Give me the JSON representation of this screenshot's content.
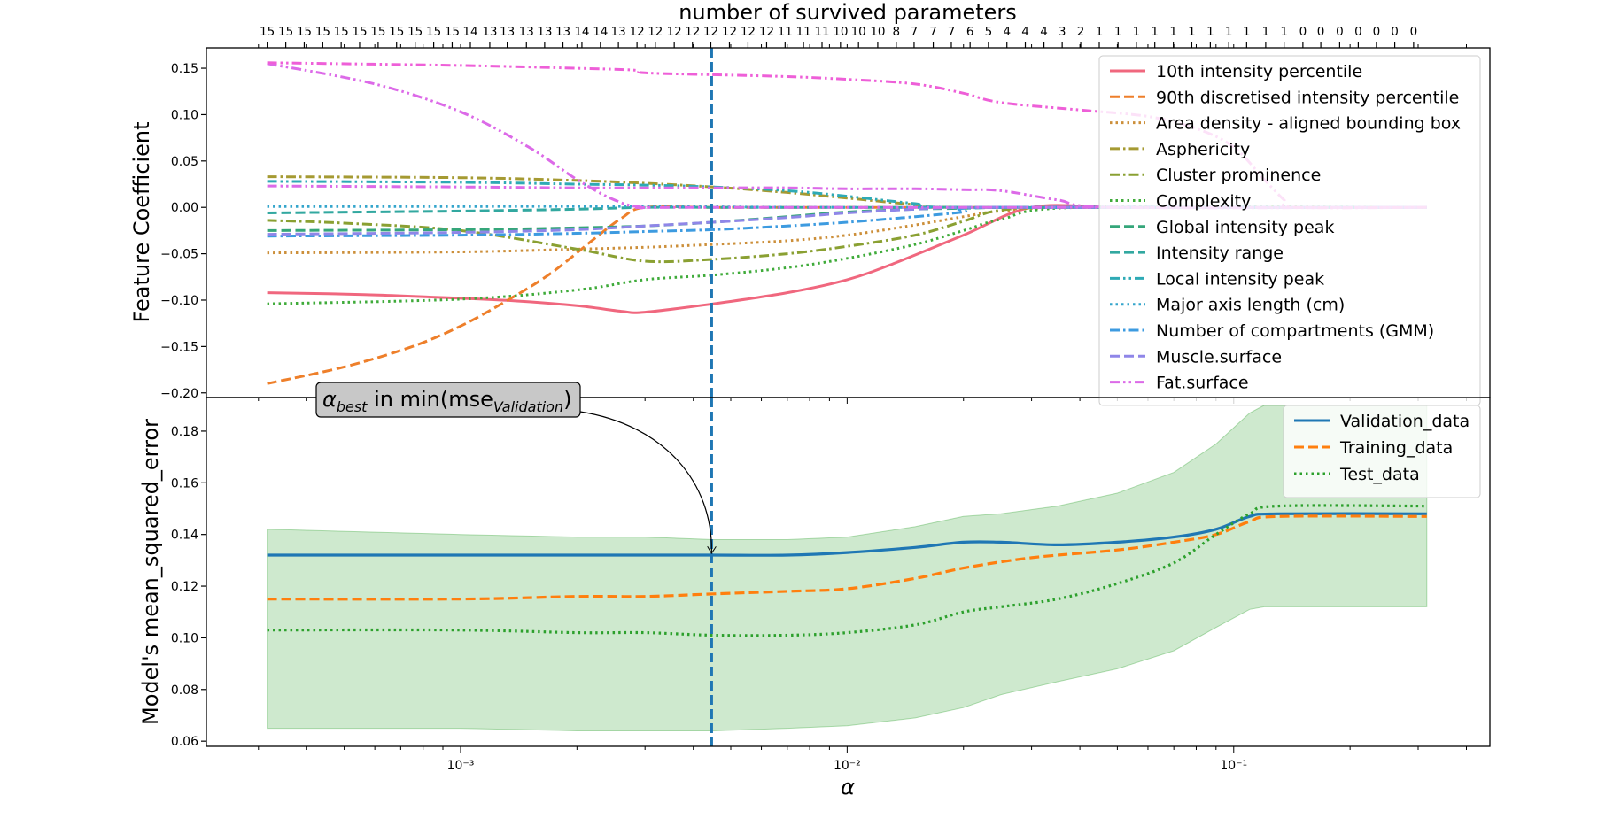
{
  "chart_data": [
    {
      "type": "line",
      "title": "",
      "top_axis_label": "number of survived parameters",
      "ylabel": "Feature Coefficient",
      "xlabel": "",
      "xscale": "log",
      "xlim": [
        0.00022,
        0.46
      ],
      "ylim": [
        -0.205,
        0.172
      ],
      "yticks": [
        0.15,
        0.1,
        0.05,
        0.0,
        -0.05,
        -0.1,
        -0.15,
        -0.2
      ],
      "ytick_labels": [
        "0.15",
        "0.10",
        "0.05",
        "0.00",
        "−0.05",
        "−0.10",
        "−0.15",
        "−0.20"
      ],
      "grid": false,
      "legend_position": "top-right",
      "top_ticks": {
        "x": [
          0.000316,
          0.000353,
          0.000394,
          0.00044,
          0.000491,
          0.000548,
          0.000612,
          0.000683,
          0.000763,
          0.000852,
          0.000951,
          0.00106,
          0.00119,
          0.00132,
          0.00148,
          0.00165,
          0.00184,
          0.00206,
          0.0023,
          0.00256,
          0.00286,
          0.00319,
          0.00357,
          0.00398,
          0.00444,
          0.00496,
          0.00554,
          0.00619,
          0.00691,
          0.00771,
          0.00861,
          0.00961,
          0.0107,
          0.012,
          0.0134,
          0.0149,
          0.0167,
          0.0186,
          0.0208,
          0.0232,
          0.0259,
          0.0289,
          0.0323,
          0.036,
          0.0402,
          0.0449,
          0.0502,
          0.056,
          0.0625,
          0.0698,
          0.0779,
          0.087,
          0.0971,
          0.108,
          0.121,
          0.135,
          0.151,
          0.168,
          0.188,
          0.21,
          0.234,
          0.261,
          0.292
        ],
        "labels": [
          "15",
          "15",
          "15",
          "15",
          "15",
          "15",
          "15",
          "15",
          "15",
          "15",
          "15",
          "14",
          "13",
          "13",
          "13",
          "13",
          "13",
          "14",
          "14",
          "13",
          "12",
          "12",
          "12",
          "12",
          "12",
          "12",
          "12",
          "12",
          "11",
          "11",
          "11",
          "10",
          "10",
          "10",
          "8",
          "7",
          "7",
          "7",
          "6",
          "5",
          "4",
          "4",
          "4",
          "3",
          "2",
          "1",
          "1",
          "1",
          "1",
          "1",
          "1",
          "1",
          "1",
          "1",
          "1",
          "1",
          "0",
          "0",
          "0",
          "0",
          "0",
          "0",
          "0"
        ]
      },
      "series": [
        {
          "name": "10th intensity percentile",
          "color": "#f0677e",
          "dash": "solid",
          "x": [
            0.000316,
            0.000562,
            0.001,
            0.0014,
            0.002,
            0.0026,
            0.003,
            0.0045,
            0.007,
            0.01,
            0.0133,
            0.02,
            0.03,
            0.05,
            0.1,
            0.316
          ],
          "y": [
            -0.092,
            -0.094,
            -0.098,
            -0.101,
            -0.106,
            -0.112,
            -0.113,
            -0.104,
            -0.092,
            -0.078,
            -0.06,
            -0.03,
            0.0,
            0.0,
            0.0,
            0.0
          ]
        },
        {
          "name": "90th discretised intensity percentile",
          "color": "#ee7f2a",
          "dash": "dashed",
          "x": [
            0.000316,
            0.0005,
            0.00075,
            0.001,
            0.0013,
            0.0017,
            0.0022,
            0.0026,
            0.003,
            0.0045,
            0.01,
            0.1,
            0.316
          ],
          "y": [
            -0.19,
            -0.172,
            -0.15,
            -0.128,
            -0.102,
            -0.072,
            -0.035,
            -0.012,
            0.0,
            0.0,
            0.0,
            0.0,
            0.0
          ]
        },
        {
          "name": "Area density - aligned bounding box",
          "color": "#cc8f3a",
          "dash": "dotted",
          "x": [
            0.000316,
            0.001,
            0.002,
            0.003,
            0.0045,
            0.007,
            0.01,
            0.015,
            0.02,
            0.025,
            0.04,
            0.316
          ],
          "y": [
            -0.049,
            -0.048,
            -0.045,
            -0.043,
            -0.04,
            -0.036,
            -0.03,
            -0.019,
            -0.01,
            -0.004,
            0.0,
            0.0
          ]
        },
        {
          "name": "Asphericity",
          "color": "#a59a32",
          "dash": "dashdot",
          "x": [
            0.000316,
            0.001,
            0.002,
            0.003,
            0.0045,
            0.007,
            0.01,
            0.015,
            0.02,
            0.316
          ],
          "y": [
            0.033,
            0.032,
            0.029,
            0.026,
            0.022,
            0.016,
            0.01,
            0.003,
            0.0,
            0.0
          ]
        },
        {
          "name": "Cluster prominence",
          "color": "#8aa032",
          "dash": "dashdot",
          "x": [
            0.000316,
            0.0005,
            0.001,
            0.002,
            0.003,
            0.0045,
            0.007,
            0.01,
            0.015,
            0.02,
            0.025,
            0.04,
            0.316
          ],
          "y": [
            -0.014,
            -0.017,
            -0.025,
            -0.045,
            -0.058,
            -0.056,
            -0.05,
            -0.042,
            -0.03,
            -0.015,
            -0.003,
            0.0,
            0.0
          ]
        },
        {
          "name": "Complexity",
          "color": "#3fab3a",
          "dash": "dotted",
          "x": [
            0.000316,
            0.001,
            0.002,
            0.003,
            0.0045,
            0.007,
            0.01,
            0.015,
            0.02,
            0.025,
            0.04,
            0.316
          ],
          "y": [
            -0.104,
            -0.099,
            -0.089,
            -0.078,
            -0.073,
            -0.065,
            -0.055,
            -0.04,
            -0.025,
            -0.013,
            0.0,
            0.0
          ]
        },
        {
          "name": "Global intensity peak",
          "color": "#35a67a",
          "dash": "dashed",
          "x": [
            0.000316,
            0.001,
            0.002,
            0.003,
            0.0045,
            0.007,
            0.01,
            0.015,
            0.02,
            0.025,
            0.035,
            0.316
          ],
          "y": [
            -0.025,
            -0.024,
            -0.022,
            -0.02,
            -0.016,
            -0.01,
            -0.005,
            -0.002,
            -0.001,
            0.0,
            0.0,
            0.0
          ]
        },
        {
          "name": "Intensity range",
          "color": "#32a8a0",
          "dash": "dashed",
          "x": [
            0.000316,
            0.001,
            0.002,
            0.003,
            0.0045,
            0.007,
            0.01,
            0.316
          ],
          "y": [
            -0.006,
            -0.004,
            -0.002,
            0.0,
            0.0,
            0.0,
            0.0,
            0.0
          ]
        },
        {
          "name": "Local intensity peak",
          "color": "#2eaab5",
          "dash": "dashdotdot",
          "x": [
            0.000316,
            0.001,
            0.002,
            0.003,
            0.0045,
            0.007,
            0.01,
            0.015,
            0.02,
            0.316
          ],
          "y": [
            0.028,
            0.027,
            0.025,
            0.024,
            0.022,
            0.018,
            0.012,
            0.004,
            0.0,
            0.0
          ]
        },
        {
          "name": "Major axis length (cm)",
          "color": "#34a5cc",
          "dash": "dotted",
          "x": [
            0.000316,
            0.001,
            0.003,
            0.01,
            0.316
          ],
          "y": [
            0.001,
            0.001,
            0.001,
            0.0,
            0.0
          ]
        },
        {
          "name": "Number of compartments (GMM)",
          "color": "#3d9be0",
          "dash": "dashdot",
          "x": [
            0.000316,
            0.001,
            0.002,
            0.003,
            0.0045,
            0.007,
            0.01,
            0.015,
            0.02,
            0.025,
            0.316
          ],
          "y": [
            -0.031,
            -0.03,
            -0.028,
            -0.026,
            -0.024,
            -0.02,
            -0.016,
            -0.01,
            -0.005,
            0.0,
            0.0
          ]
        },
        {
          "name": "Muscle.surface",
          "color": "#8f86e8",
          "dash": "dashed",
          "x": [
            0.000316,
            0.001,
            0.002,
            0.003,
            0.0045,
            0.007,
            0.01,
            0.015,
            0.02,
            0.03,
            0.316
          ],
          "y": [
            -0.029,
            -0.027,
            -0.024,
            -0.02,
            -0.016,
            -0.011,
            -0.006,
            -0.002,
            0.0,
            0.0,
            0.0
          ]
        },
        {
          "name": "Fat.surface",
          "color": "#dc6ae8",
          "dash": "dashdotdot",
          "x": [
            0.000316,
            0.001,
            0.002,
            0.003,
            0.0045,
            0.007,
            0.01,
            0.015,
            0.02,
            0.025,
            0.035,
            0.05,
            0.316
          ],
          "y": [
            0.023,
            0.022,
            0.021,
            0.021,
            0.021,
            0.021,
            0.02,
            0.02,
            0.019,
            0.018,
            0.008,
            0.0,
            0.0
          ]
        },
        {
          "name": "",
          "color": "#dc6ae8",
          "dash": "dashdotdot",
          "x": [
            0.000316,
            0.0006,
            0.001,
            0.0015,
            0.002,
            0.0025,
            0.003,
            0.0045,
            0.316
          ],
          "y": [
            0.155,
            0.133,
            0.103,
            0.065,
            0.03,
            0.008,
            0.0,
            0.0,
            0.0
          ]
        },
        {
          "name": "",
          "color": "#ee5fd8",
          "dash": "dashdotdot",
          "x": [
            0.000316,
            0.001,
            0.002,
            0.0028,
            0.003,
            0.0045,
            0.007,
            0.01,
            0.015,
            0.02,
            0.025,
            0.04,
            0.06,
            0.08,
            0.1,
            0.12,
            0.135,
            0.145,
            0.316
          ],
          "y": [
            0.156,
            0.153,
            0.15,
            0.148,
            0.145,
            0.143,
            0.141,
            0.138,
            0.133,
            0.123,
            0.113,
            0.105,
            0.098,
            0.085,
            0.065,
            0.03,
            0.008,
            0.0,
            0.0
          ]
        }
      ],
      "legend": {
        "entries": [
          {
            "label": "10th intensity percentile",
            "color": "#f0677e",
            "dash": "solid"
          },
          {
            "label": "90th discretised intensity percentile",
            "color": "#ee7f2a",
            "dash": "dashed"
          },
          {
            "label": "Area density - aligned bounding box",
            "color": "#cc8f3a",
            "dash": "dotted"
          },
          {
            "label": "Asphericity",
            "color": "#a59a32",
            "dash": "dashdot"
          },
          {
            "label": "Cluster prominence",
            "color": "#8aa032",
            "dash": "dashdot"
          },
          {
            "label": "Complexity",
            "color": "#3fab3a",
            "dash": "dotted"
          },
          {
            "label": "Global intensity peak",
            "color": "#35a67a",
            "dash": "dashed"
          },
          {
            "label": "Intensity range",
            "color": "#32a8a0",
            "dash": "dashed"
          },
          {
            "label": "Local intensity peak",
            "color": "#2eaab5",
            "dash": "dashdotdot"
          },
          {
            "label": "Major axis length (cm)",
            "color": "#34a5cc",
            "dash": "dotted"
          },
          {
            "label": "Number of compartments (GMM)",
            "color": "#3d9be0",
            "dash": "dashdot"
          },
          {
            "label": "Muscle.surface",
            "color": "#8f86e8",
            "dash": "dashed"
          },
          {
            "label": "Fat.surface",
            "color": "#dc6ae8",
            "dash": "dashdotdot"
          }
        ]
      },
      "vline": {
        "x": 0.00446,
        "color": "#1f77b4",
        "dash": "dashed"
      }
    },
    {
      "type": "line",
      "title": "",
      "ylabel": "Model's mean_squared_error",
      "xlabel": "α",
      "xscale": "log",
      "xlim": [
        0.00022,
        0.46
      ],
      "ylim": [
        0.058,
        0.193
      ],
      "yticks": [
        0.06,
        0.08,
        0.1,
        0.12,
        0.14,
        0.16,
        0.18
      ],
      "ytick_labels": [
        "0.06",
        "0.08",
        "0.10",
        "0.12",
        "0.14",
        "0.16",
        "0.18"
      ],
      "xticks": [
        0.001,
        0.01,
        0.1
      ],
      "xtick_labels": [
        "10⁻³",
        "10⁻²",
        "10⁻¹"
      ],
      "grid": false,
      "legend_position": "top-right",
      "series": [
        {
          "name": "Validation_data",
          "color": "#1f77b4",
          "dash": "solid",
          "x": [
            0.000316,
            0.001,
            0.002,
            0.003,
            0.0045,
            0.007,
            0.01,
            0.015,
            0.02,
            0.025,
            0.035,
            0.05,
            0.07,
            0.09,
            0.11,
            0.13,
            0.316
          ],
          "y": [
            0.132,
            0.132,
            0.132,
            0.132,
            0.132,
            0.132,
            0.133,
            0.135,
            0.137,
            0.137,
            0.136,
            0.137,
            0.139,
            0.142,
            0.147,
            0.148,
            0.148
          ]
        },
        {
          "name": "Training_data",
          "color": "#ff7f0e",
          "dash": "dashed",
          "x": [
            0.000316,
            0.001,
            0.002,
            0.003,
            0.0045,
            0.007,
            0.01,
            0.015,
            0.02,
            0.03,
            0.05,
            0.07,
            0.09,
            0.11,
            0.13,
            0.316
          ],
          "y": [
            0.115,
            0.115,
            0.116,
            0.116,
            0.117,
            0.118,
            0.119,
            0.123,
            0.127,
            0.131,
            0.134,
            0.137,
            0.14,
            0.145,
            0.147,
            0.147
          ]
        },
        {
          "name": "Test_data",
          "color": "#2ca02c",
          "dash": "dotted",
          "x": [
            0.000316,
            0.001,
            0.002,
            0.003,
            0.0045,
            0.007,
            0.01,
            0.015,
            0.02,
            0.025,
            0.035,
            0.05,
            0.07,
            0.09,
            0.11,
            0.13,
            0.316
          ],
          "y": [
            0.103,
            0.103,
            0.102,
            0.102,
            0.101,
            0.101,
            0.102,
            0.105,
            0.11,
            0.112,
            0.115,
            0.121,
            0.129,
            0.14,
            0.148,
            0.151,
            0.151
          ]
        }
      ],
      "band": {
        "color": "#2ca02c",
        "opacity": 0.23,
        "x": [
          0.000316,
          0.001,
          0.002,
          0.003,
          0.0045,
          0.007,
          0.01,
          0.015,
          0.02,
          0.025,
          0.035,
          0.05,
          0.07,
          0.09,
          0.11,
          0.12,
          0.13,
          0.316
        ],
        "upper": [
          0.142,
          0.14,
          0.139,
          0.139,
          0.138,
          0.138,
          0.139,
          0.143,
          0.147,
          0.148,
          0.151,
          0.156,
          0.164,
          0.175,
          0.187,
          0.19,
          0.19,
          0.19
        ],
        "lower": [
          0.065,
          0.065,
          0.064,
          0.064,
          0.064,
          0.065,
          0.066,
          0.069,
          0.073,
          0.078,
          0.083,
          0.088,
          0.095,
          0.104,
          0.111,
          0.112,
          0.112,
          0.112
        ]
      },
      "legend": {
        "entries": [
          {
            "label": "Validation_data",
            "color": "#1f77b4",
            "dash": "solid"
          },
          {
            "label": "Training_data",
            "color": "#ff7f0e",
            "dash": "dashed"
          },
          {
            "label": "Test_data",
            "color": "#2ca02c",
            "dash": "dotted"
          }
        ]
      },
      "vline": {
        "x": 0.00446,
        "color": "#1f77b4",
        "dash": "dashed"
      },
      "annotation": {
        "alpha_symbol": "α",
        "alpha_subscript": "best",
        "text_mid": " in min(mse",
        "mse_subscript": "Validation",
        "text_end": ")",
        "target_x": 0.00446,
        "target_y": 0.132
      }
    }
  ]
}
